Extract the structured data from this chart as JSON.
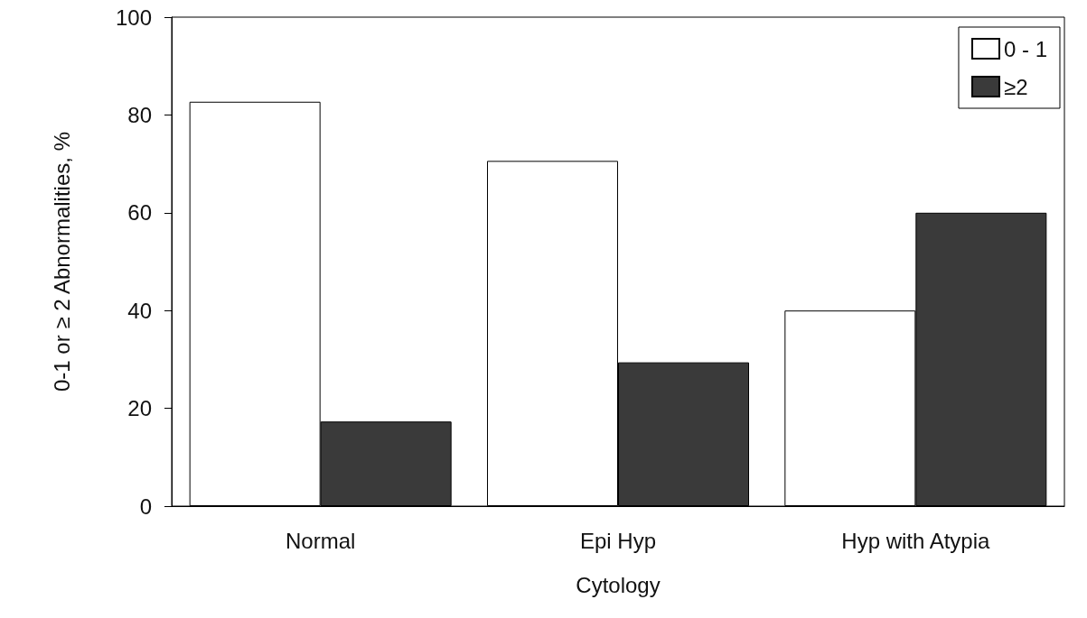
{
  "chart_data": {
    "type": "bar",
    "xlabel": "Cytology",
    "ylabel": "0-1 or ≥ 2 Abnormalities, %",
    "categories": [
      "Normal",
      "Epi Hyp",
      "Hyp with Atypia"
    ],
    "series": [
      {
        "name": "0 - 1",
        "color": "#ffffff",
        "values": [
          82.7,
          70.6,
          40.0
        ]
      },
      {
        "name": "≥2",
        "color": "#3a3a3a",
        "values": [
          17.3,
          29.4,
          60.0
        ]
      }
    ],
    "ylim": [
      0,
      100
    ],
    "yticks": [
      0,
      20,
      40,
      60,
      80,
      100
    ],
    "grid": false,
    "legend": "top right"
  }
}
